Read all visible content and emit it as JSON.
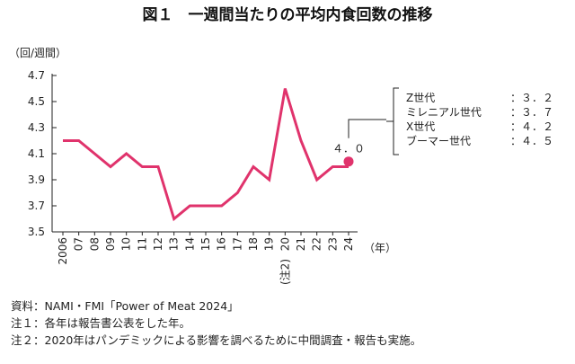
{
  "chart_data": {
    "type": "line",
    "title": "図１　一週間当たりの平均内食回数の推移",
    "ylabel": "（回/週間）",
    "xlabel": "（年）",
    "ylim": [
      3.5,
      4.7
    ],
    "yticks": [
      "4.7",
      "4.5",
      "4.3",
      "4.1",
      "3.9",
      "3.7",
      "3.5"
    ],
    "categories": [
      "2006",
      "07",
      "08",
      "09",
      "10",
      "11",
      "12",
      "13",
      "14",
      "15",
      "16",
      "17",
      "18",
      "19",
      "20",
      "21",
      "22",
      "23",
      "24"
    ],
    "category_notes": {
      "20": "(注2)"
    },
    "series": [
      {
        "color": "#e0336c",
        "values": [
          4.2,
          4.2,
          4.1,
          4.0,
          4.1,
          4.0,
          4.0,
          3.6,
          3.7,
          3.7,
          3.7,
          3.8,
          4.0,
          3.9,
          4.6,
          4.2,
          3.9,
          4.0,
          4.0
        ]
      }
    ],
    "highlight_point": {
      "x": "24",
      "value": 4.04,
      "label": "４．０"
    },
    "generation_box": {
      "rows": [
        {
          "label": "Z世代",
          "sep": "：",
          "value": "３．２"
        },
        {
          "label": "ミレニアル世代",
          "sep": "：",
          "value": "３．７"
        },
        {
          "label": "X世代",
          "sep": "：",
          "value": "４．２"
        },
        {
          "label": "ブーマー世代",
          "sep": "：",
          "value": "４．５"
        }
      ]
    },
    "notes": [
      "資料：NAMI・FMI「Power of Meat 2024」",
      "注１：各年は報告書公表をした年。",
      "注２：2020年はパンデミックによる影響を調べるために中間調査・報告も実施。"
    ],
    "grid": false,
    "colors": {
      "line": "#e0336c",
      "axis": "#222222"
    }
  }
}
